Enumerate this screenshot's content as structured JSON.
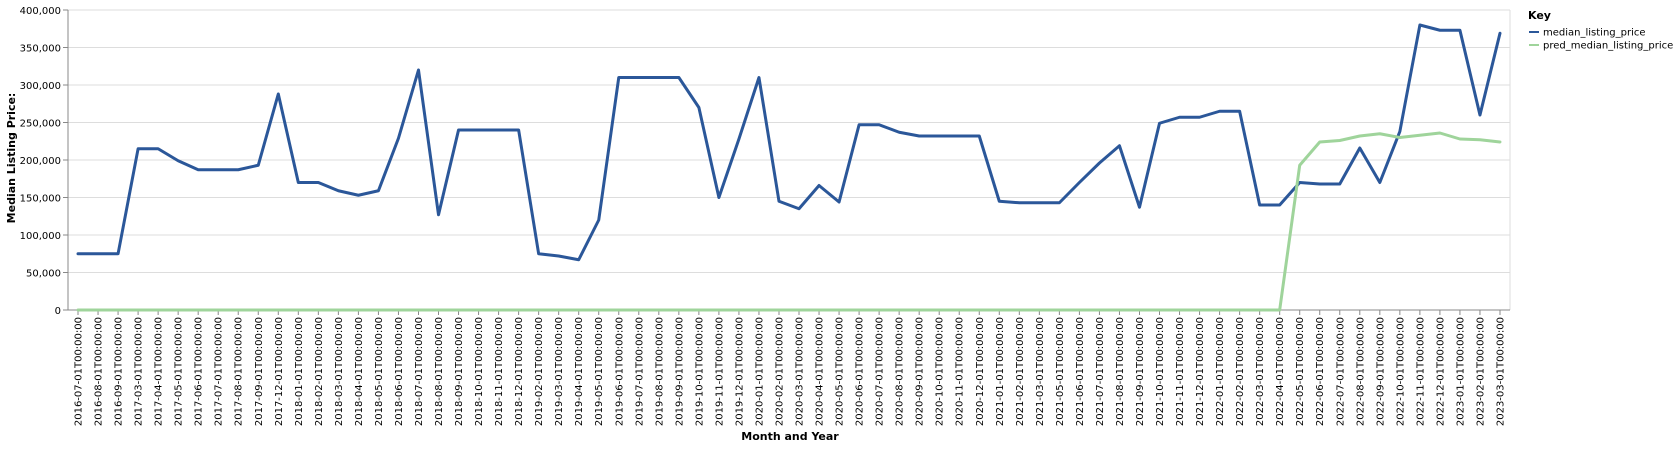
{
  "chart_data": {
    "type": "line",
    "xlabel": "Month and Year",
    "ylabel": "Median Listing Price:",
    "ylim": [
      0,
      400000
    ],
    "yticks": [
      "0",
      "50,000",
      "100,000",
      "150,000",
      "200,000",
      "250,000",
      "300,000",
      "350,000",
      "400,000"
    ],
    "grid": true,
    "legend": {
      "title": "Key",
      "placement": "top-right"
    },
    "x": [
      "2016-07-01T00:00:00",
      "2016-08-01T00:00:00",
      "2016-09-01T00:00:00",
      "2017-03-01T00:00:00",
      "2017-04-01T00:00:00",
      "2017-05-01T00:00:00",
      "2017-06-01T00:00:00",
      "2017-07-01T00:00:00",
      "2017-08-01T00:00:00",
      "2017-09-01T00:00:00",
      "2017-12-01T00:00:00",
      "2018-01-01T00:00:00",
      "2018-02-01T00:00:00",
      "2018-03-01T00:00:00",
      "2018-04-01T00:00:00",
      "2018-05-01T00:00:00",
      "2018-06-01T00:00:00",
      "2018-07-01T00:00:00",
      "2018-08-01T00:00:00",
      "2018-09-01T00:00:00",
      "2018-10-01T00:00:00",
      "2018-11-01T00:00:00",
      "2018-12-01T00:00:00",
      "2019-02-01T00:00:00",
      "2019-03-01T00:00:00",
      "2019-04-01T00:00:00",
      "2019-05-01T00:00:00",
      "2019-06-01T00:00:00",
      "2019-07-01T00:00:00",
      "2019-08-01T00:00:00",
      "2019-09-01T00:00:00",
      "2019-10-01T00:00:00",
      "2019-11-01T00:00:00",
      "2019-12-01T00:00:00",
      "2020-01-01T00:00:00",
      "2020-02-01T00:00:00",
      "2020-03-01T00:00:00",
      "2020-04-01T00:00:00",
      "2020-05-01T00:00:00",
      "2020-06-01T00:00:00",
      "2020-07-01T00:00:00",
      "2020-08-01T00:00:00",
      "2020-09-01T00:00:00",
      "2020-10-01T00:00:00",
      "2020-11-01T00:00:00",
      "2020-12-01T00:00:00",
      "2021-01-01T00:00:00",
      "2021-02-01T00:00:00",
      "2021-03-01T00:00:00",
      "2021-05-01T00:00:00",
      "2021-06-01T00:00:00",
      "2021-07-01T00:00:00",
      "2021-08-01T00:00:00",
      "2021-09-01T00:00:00",
      "2021-10-01T00:00:00",
      "2021-11-01T00:00:00",
      "2021-12-01T00:00:00",
      "2022-01-01T00:00:00",
      "2022-02-01T00:00:00",
      "2022-03-01T00:00:00",
      "2022-04-01T00:00:00",
      "2022-05-01T00:00:00",
      "2022-06-01T00:00:00",
      "2022-07-01T00:00:00",
      "2022-08-01T00:00:00",
      "2022-09-01T00:00:00",
      "2022-10-01T00:00:00",
      "2022-11-01T00:00:00",
      "2022-12-01T00:00:00",
      "2023-01-01T00:00:00",
      "2023-02-01T00:00:00",
      "2023-03-01T00:00:00"
    ],
    "series": [
      {
        "name": "median_listing_price",
        "color": "#2b5799",
        "values": [
          75000,
          75000,
          75000,
          215000,
          215000,
          199000,
          187000,
          187000,
          187000,
          193000,
          288000,
          170000,
          170000,
          159000,
          153000,
          159000,
          229000,
          320000,
          127000,
          240000,
          240000,
          240000,
          240000,
          75000,
          72000,
          67000,
          120000,
          310000,
          310000,
          310000,
          310000,
          270000,
          150000,
          228000,
          310000,
          145000,
          135000,
          166000,
          144000,
          247000,
          247000,
          237000,
          232000,
          232000,
          232000,
          232000,
          145000,
          143000,
          143000,
          143000,
          170000,
          196000,
          219000,
          137000,
          249000,
          257000,
          257000,
          265000,
          265000,
          140000,
          140000,
          170000,
          168000,
          168000,
          216000,
          170000,
          238000,
          380000,
          373000,
          373000,
          260000,
          369000
        ]
      },
      {
        "name": "pred_median_listing_price",
        "color": "#9fd49b",
        "values": [
          0,
          0,
          0,
          0,
          0,
          0,
          0,
          0,
          0,
          0,
          0,
          0,
          0,
          0,
          0,
          0,
          0,
          0,
          0,
          0,
          0,
          0,
          0,
          0,
          0,
          0,
          0,
          0,
          0,
          0,
          0,
          0,
          0,
          0,
          0,
          0,
          0,
          0,
          0,
          0,
          0,
          0,
          0,
          0,
          0,
          0,
          0,
          0,
          0,
          0,
          0,
          0,
          0,
          0,
          0,
          0,
          0,
          0,
          0,
          0,
          0,
          193000,
          224000,
          226000,
          232000,
          235000,
          230000,
          233000,
          236000,
          228000,
          227000,
          224000
        ]
      }
    ]
  }
}
